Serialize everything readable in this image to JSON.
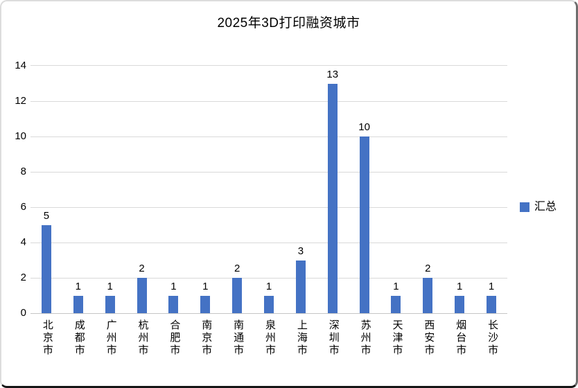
{
  "title": "2025年3D打印融资城市",
  "legend": {
    "label": "汇总",
    "color": "#4472C4"
  },
  "chart_data": {
    "type": "bar",
    "title": "2025年3D打印融资城市",
    "categories": [
      "北京市",
      "成都市",
      "广州市",
      "杭州市",
      "合肥市",
      "南京市",
      "南通市",
      "泉州市",
      "上海市",
      "深圳市",
      "苏州市",
      "天津市",
      "西安市",
      "烟台市",
      "长沙市"
    ],
    "series": [
      {
        "name": "汇总",
        "values": [
          5,
          1,
          1,
          2,
          1,
          1,
          2,
          1,
          3,
          13,
          10,
          1,
          2,
          1,
          1
        ]
      }
    ],
    "xlabel": "",
    "ylabel": "",
    "ylim": [
      0,
      14
    ],
    "ytick_interval": 2,
    "grid": true,
    "legend_position": "right",
    "bar_color": "#4472C4",
    "gridline_color": "#D9D9D9",
    "data_labels": true
  }
}
